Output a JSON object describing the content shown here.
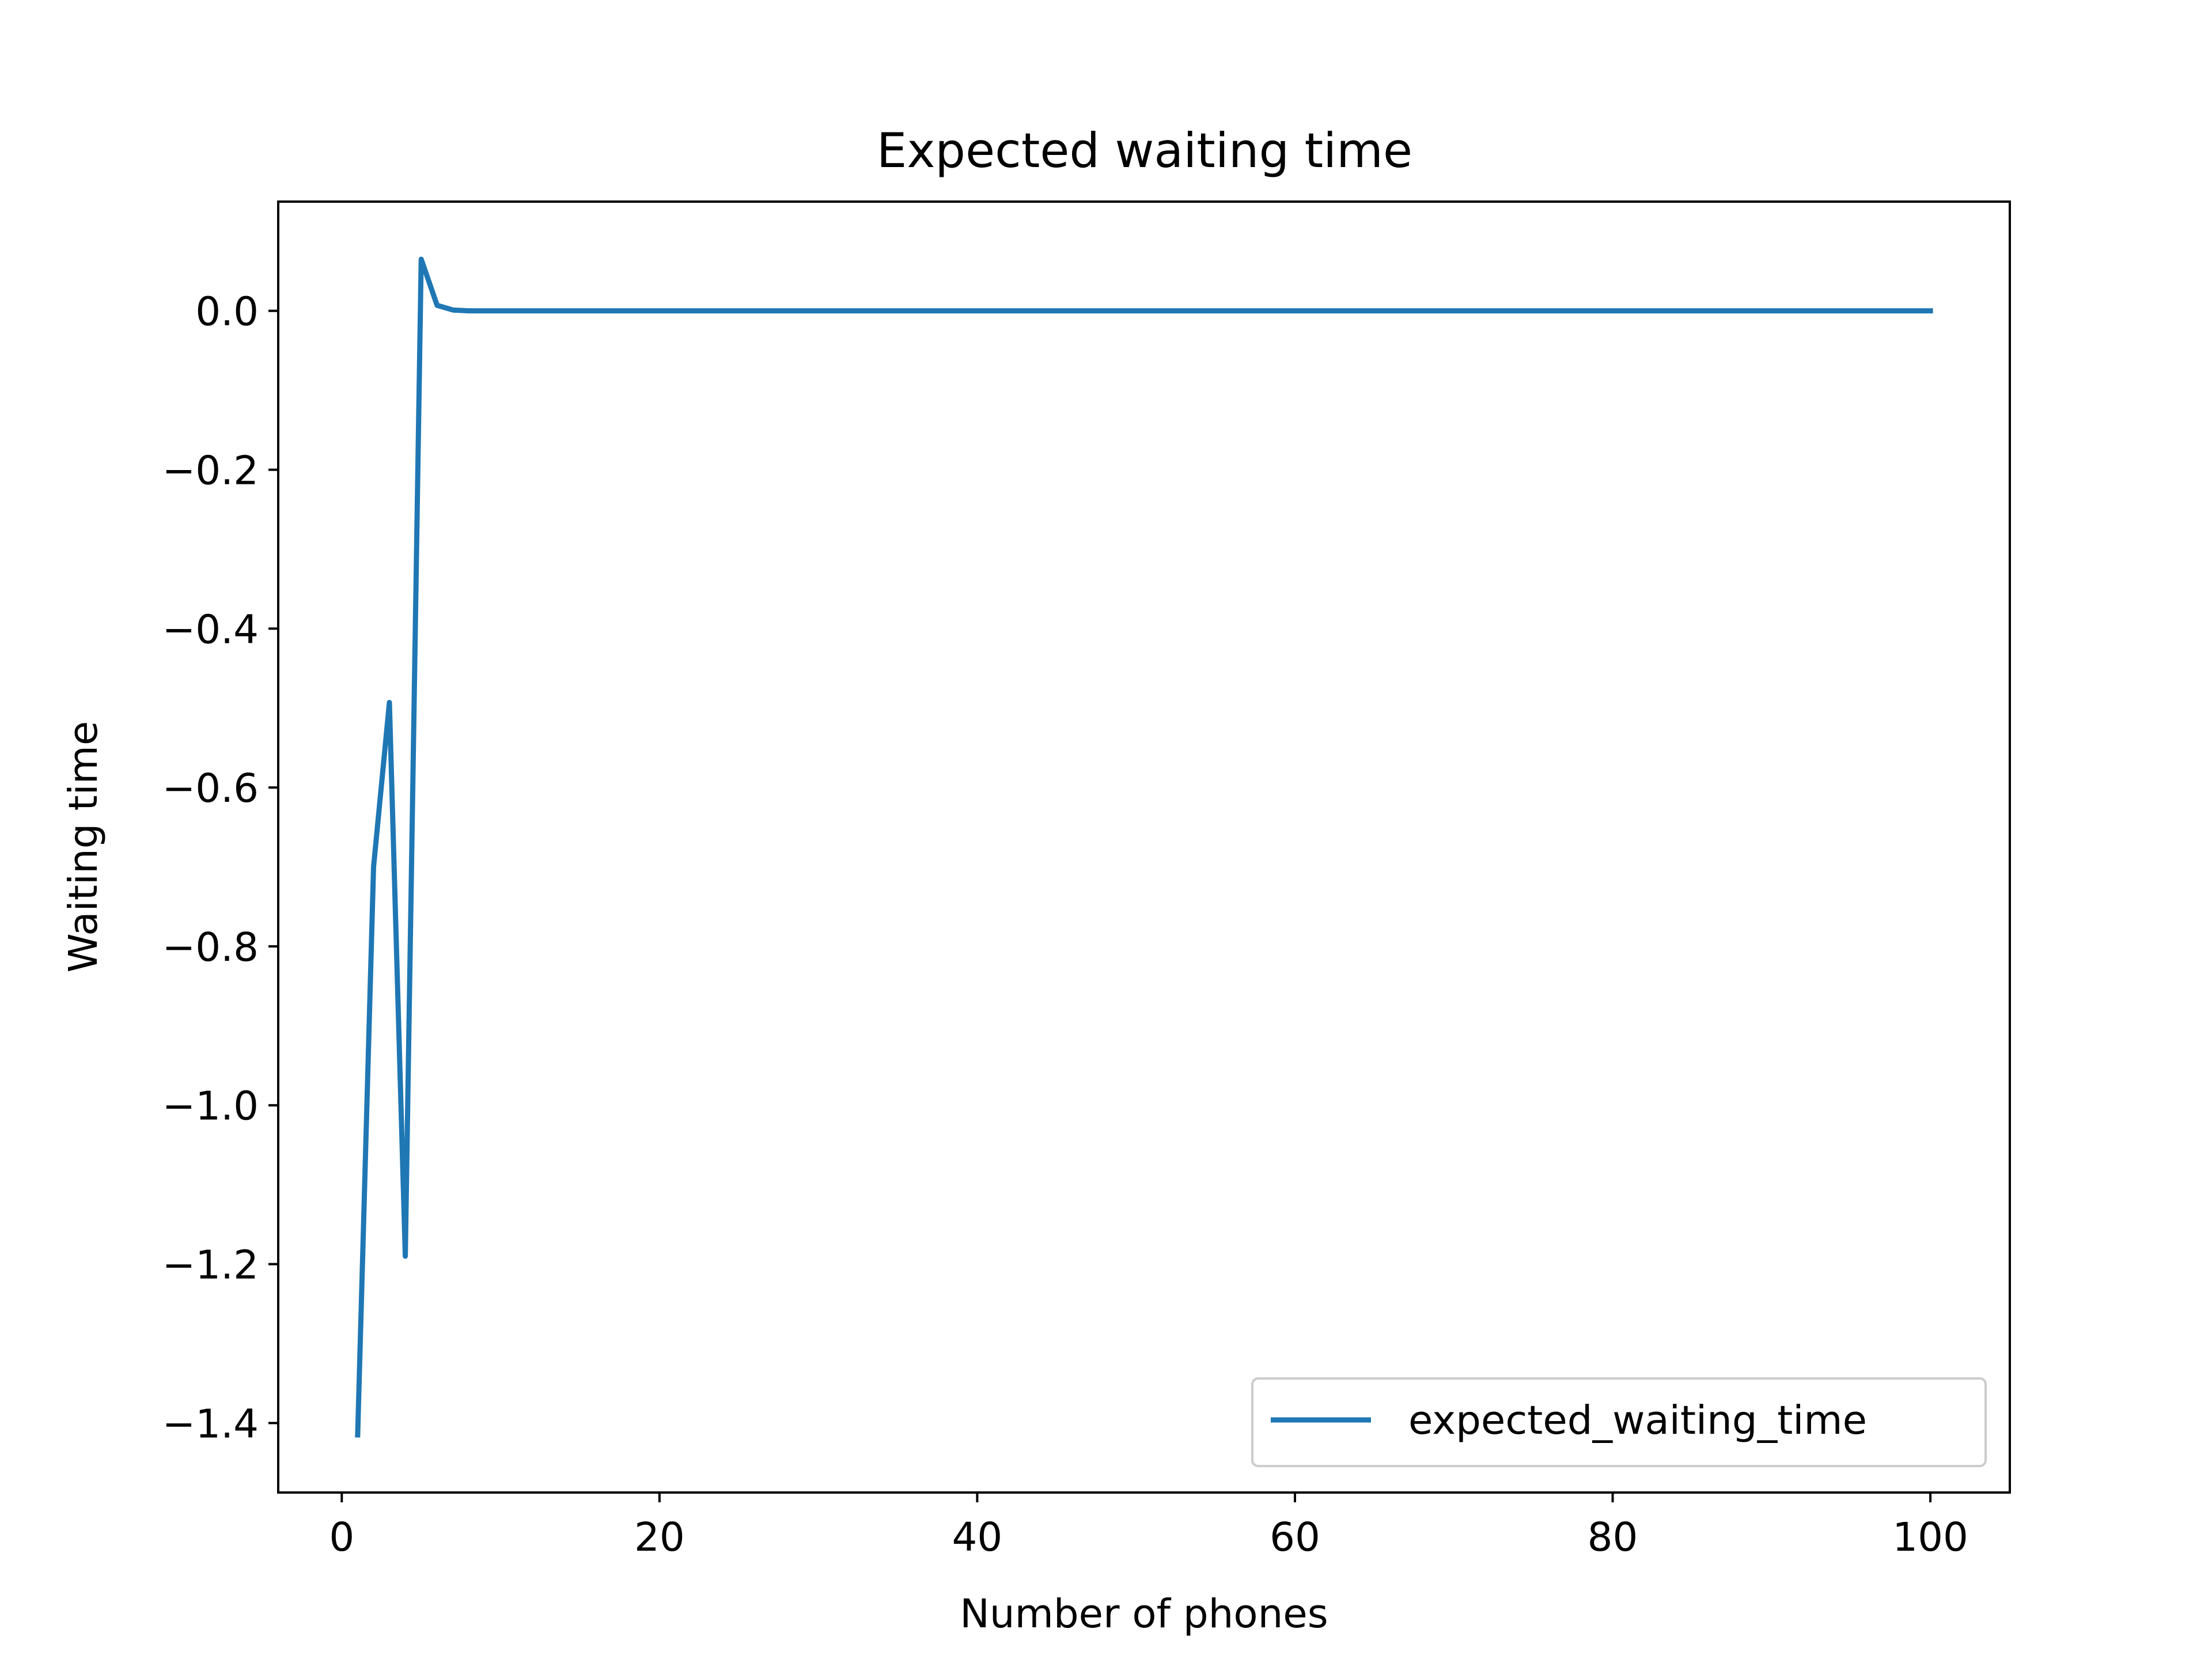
{
  "chart_data": {
    "type": "line",
    "title": "Expected waiting time",
    "xlabel": "Number of phones",
    "ylabel": "Waiting time",
    "xlim": [
      -4.0,
      105.0
    ],
    "ylim": [
      -1.4875,
      0.1375
    ],
    "xticks": [
      0,
      20,
      40,
      60,
      80,
      100
    ],
    "xtick_labels": [
      "0",
      "20",
      "40",
      "60",
      "80",
      "100"
    ],
    "yticks": [
      0.0,
      -0.2,
      -0.4,
      -0.6,
      -0.8,
      -1.0,
      -1.2,
      -1.4
    ],
    "ytick_labels": [
      "0.0",
      "−0.2",
      "−0.4",
      "−0.6",
      "−0.8",
      "−1.0",
      "−1.2",
      "−1.4"
    ],
    "grid": false,
    "legend_position": "lower-right",
    "series": [
      {
        "name": "expected_waiting_time",
        "color": "#1f77b4",
        "x": [
          1,
          2,
          3,
          4,
          5,
          6,
          7,
          8,
          9,
          10,
          100
        ],
        "y": [
          -1.415,
          -0.7,
          -0.493,
          -1.19,
          0.065,
          0.007,
          0.001,
          0.0,
          0.0,
          0.0,
          0.0
        ]
      }
    ]
  }
}
